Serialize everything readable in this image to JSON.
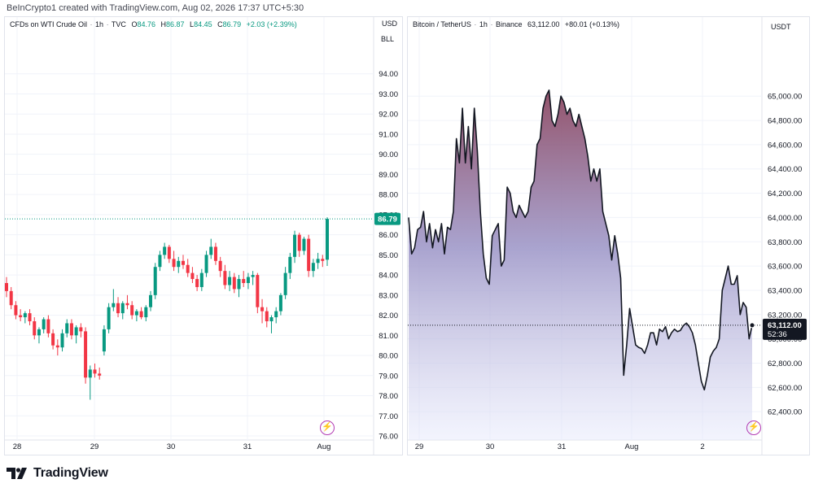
{
  "header": {
    "created_by": "BeInCrypto1 created with TradingView.com, Aug 02, 2026 17:37 UTC+5:30"
  },
  "footer": {
    "brand": "TradingView"
  },
  "colors": {
    "up": "#089981",
    "down": "#f23645",
    "line": "#131722",
    "grid": "#f0f3fa",
    "area_top": "#8e4a63",
    "area_bottom": "#dfe4fb"
  },
  "icons": [
    "lightning-icon",
    "tradingview-logo-icon"
  ],
  "left": {
    "symbol": "CFDs on WTI Crude Oil",
    "interval": "1h",
    "source": "TVC",
    "ohlc": {
      "o_label": "O",
      "o": "84.76",
      "h_label": "H",
      "h": "86.87",
      "l_label": "L",
      "l": "84.45",
      "c_label": "C",
      "c": "86.79"
    },
    "change": "+2.03 (+2.39%)",
    "currency": "USD",
    "unit": "BLL",
    "last_price": "86.79",
    "x_ticks": [
      "28",
      "29",
      "30",
      "31",
      "Aug"
    ]
  },
  "right": {
    "symbol": "Bitcoin / TetherUS",
    "interval": "1h",
    "source": "Binance",
    "price": "63,112.00",
    "change": "+80.01 (+0.13%)",
    "currency": "USDT",
    "last_price": "63,112.00",
    "countdown": "52:36",
    "x_ticks": [
      "29",
      "30",
      "31",
      "Aug",
      "2"
    ]
  },
  "chart_data": [
    {
      "type": "candlestick",
      "title": "CFDs on WTI Crude Oil · 1h · TVC",
      "ylim": [
        76,
        95
      ],
      "y_ticks": [
        "94.00",
        "93.00",
        "92.00",
        "91.00",
        "90.00",
        "89.00",
        "88.00",
        "87.00",
        "86.00",
        "85.00",
        "84.00",
        "83.00",
        "82.00",
        "81.00",
        "80.00",
        "79.00",
        "78.00",
        "77.00",
        "76.00"
      ],
      "x_ticks": [
        "28",
        "29",
        "30",
        "31",
        "Aug"
      ],
      "candles": [
        [
          83.6,
          83.9,
          82.9,
          83.2
        ],
        [
          83.2,
          83.4,
          82.3,
          82.5
        ],
        [
          82.5,
          82.7,
          81.8,
          82.0
        ],
        [
          82.0,
          82.3,
          81.7,
          81.9
        ],
        [
          81.9,
          82.2,
          81.6,
          82.1
        ],
        [
          82.1,
          82.3,
          81.5,
          81.7
        ],
        [
          81.7,
          81.9,
          80.8,
          81.0
        ],
        [
          81.0,
          81.4,
          80.6,
          81.3
        ],
        [
          81.3,
          81.9,
          81.1,
          81.8
        ],
        [
          81.8,
          82.0,
          80.9,
          81.1
        ],
        [
          81.1,
          81.3,
          80.3,
          80.5
        ],
        [
          80.5,
          80.8,
          80.0,
          80.4
        ],
        [
          80.4,
          81.3,
          80.2,
          81.1
        ],
        [
          81.1,
          81.8,
          80.9,
          81.6
        ],
        [
          81.6,
          81.8,
          80.8,
          81.0
        ],
        [
          81.0,
          81.5,
          80.6,
          81.4
        ],
        [
          81.4,
          81.6,
          80.9,
          81.2
        ],
        [
          81.2,
          81.4,
          78.6,
          78.9
        ],
        [
          78.9,
          79.5,
          77.8,
          79.3
        ],
        [
          79.3,
          79.6,
          78.9,
          79.1
        ],
        [
          79.1,
          79.4,
          78.8,
          79.0
        ],
        [
          80.2,
          81.5,
          80.0,
          81.3
        ],
        [
          81.3,
          82.6,
          81.1,
          82.4
        ],
        [
          82.4,
          83.3,
          82.2,
          82.6
        ],
        [
          82.6,
          82.9,
          81.9,
          82.1
        ],
        [
          82.1,
          82.7,
          81.8,
          82.6
        ],
        [
          82.6,
          83.0,
          82.3,
          82.5
        ],
        [
          82.5,
          82.7,
          81.8,
          82.0
        ],
        [
          82.0,
          82.3,
          81.7,
          82.2
        ],
        [
          82.2,
          82.4,
          81.8,
          81.9
        ],
        [
          81.9,
          82.5,
          81.7,
          82.4
        ],
        [
          82.4,
          83.2,
          82.2,
          83.0
        ],
        [
          83.0,
          84.6,
          82.8,
          84.4
        ],
        [
          84.4,
          85.2,
          84.2,
          85.0
        ],
        [
          85.0,
          85.6,
          84.8,
          85.4
        ],
        [
          85.4,
          85.5,
          84.6,
          84.8
        ],
        [
          84.8,
          85.2,
          84.2,
          84.4
        ],
        [
          84.4,
          84.9,
          84.1,
          84.7
        ],
        [
          84.7,
          85.0,
          84.3,
          84.5
        ],
        [
          84.5,
          84.8,
          83.9,
          84.1
        ],
        [
          84.1,
          84.4,
          83.6,
          83.8
        ],
        [
          83.8,
          84.0,
          83.2,
          83.4
        ],
        [
          83.4,
          84.3,
          83.2,
          84.1
        ],
        [
          84.1,
          85.2,
          83.9,
          85.0
        ],
        [
          85.0,
          85.8,
          84.8,
          85.4
        ],
        [
          85.4,
          85.6,
          84.5,
          84.7
        ],
        [
          84.7,
          84.9,
          83.9,
          84.2
        ],
        [
          84.2,
          84.5,
          83.3,
          83.5
        ],
        [
          83.5,
          84.2,
          83.2,
          83.9
        ],
        [
          83.9,
          84.1,
          83.1,
          83.3
        ],
        [
          83.3,
          84.0,
          82.9,
          83.8
        ],
        [
          83.8,
          84.2,
          83.4,
          83.6
        ],
        [
          83.6,
          84.1,
          83.3,
          83.9
        ],
        [
          83.9,
          84.2,
          83.5,
          84.0
        ],
        [
          84.0,
          84.1,
          82.1,
          82.4
        ],
        [
          82.4,
          82.8,
          81.6,
          82.2
        ],
        [
          82.2,
          82.4,
          81.4,
          81.7
        ],
        [
          81.7,
          82.0,
          81.1,
          81.9
        ],
        [
          81.9,
          82.4,
          81.6,
          82.2
        ],
        [
          82.2,
          83.1,
          82.0,
          83.0
        ],
        [
          83.0,
          84.4,
          82.8,
          84.1
        ],
        [
          84.1,
          85.1,
          83.8,
          84.9
        ],
        [
          84.9,
          86.2,
          84.6,
          86.0
        ],
        [
          86.0,
          86.1,
          84.9,
          85.2
        ],
        [
          85.2,
          85.9,
          85.0,
          85.8
        ],
        [
          85.8,
          86.0,
          83.9,
          84.2
        ],
        [
          84.2,
          84.8,
          83.9,
          84.6
        ],
        [
          84.6,
          85.1,
          84.3,
          84.8
        ],
        [
          84.8,
          85.0,
          84.4,
          84.7
        ],
        [
          84.76,
          86.87,
          84.45,
          86.79
        ]
      ]
    },
    {
      "type": "area",
      "title": "Bitcoin / TetherUS · 1h · Binance",
      "ylim": [
        62200,
        65350
      ],
      "y_ticks": [
        "65,000.00",
        "64,800.00",
        "64,600.00",
        "64,400.00",
        "64,200.00",
        "64,000.00",
        "63,800.00",
        "63,600.00",
        "63,400.00",
        "63,200.00",
        "63,000.00",
        "62,800.00",
        "62,600.00",
        "62,400.00"
      ],
      "x_ticks": [
        "29",
        "30",
        "31",
        "Aug",
        "2"
      ],
      "values": [
        64000,
        63700,
        63750,
        63900,
        63920,
        64050,
        63800,
        63950,
        63750,
        63900,
        63800,
        63950,
        63700,
        63920,
        63900,
        64050,
        64650,
        64450,
        64900,
        64450,
        64750,
        64400,
        64900,
        64550,
        64050,
        63700,
        63500,
        63450,
        63850,
        63900,
        63950,
        63600,
        63650,
        64250,
        64200,
        64050,
        64000,
        64100,
        64050,
        64000,
        64050,
        64250,
        64300,
        64600,
        64650,
        64900,
        65000,
        65050,
        64800,
        64750,
        64850,
        65000,
        64950,
        64850,
        64900,
        64800,
        64750,
        64850,
        64750,
        64650,
        64500,
        64300,
        64400,
        64300,
        64400,
        64050,
        63950,
        63850,
        63650,
        63850,
        63700,
        63500,
        62700,
        62950,
        63250,
        63100,
        62950,
        62930,
        62920,
        62880,
        62950,
        63050,
        63050,
        62950,
        63080,
        63060,
        63100,
        63000,
        63050,
        63080,
        63060,
        63070,
        63110,
        63130,
        63100,
        63050,
        62950,
        62800,
        62650,
        62580,
        62700,
        62850,
        62900,
        62930,
        63000,
        63400,
        63500,
        63600,
        63450,
        63450,
        63520,
        63200,
        63300,
        63260,
        63000,
        63112
      ]
    }
  ]
}
